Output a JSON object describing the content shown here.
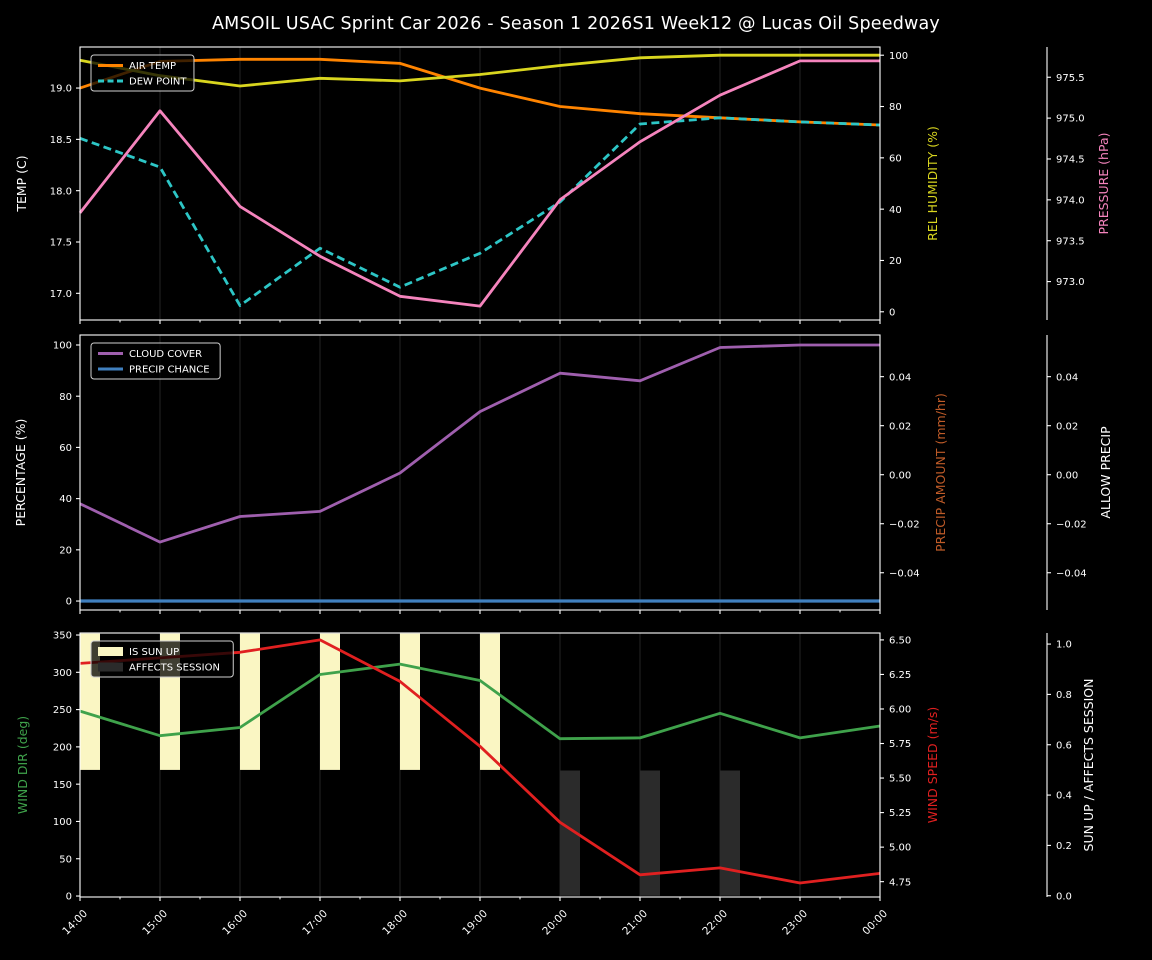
{
  "title": "AMSOIL USAC Sprint Car 2026 - Season 1 2026S1 Week12 @ Lucas Oil Speedway",
  "figure": {
    "background": "#000000",
    "text_color": "#ffffff",
    "grid_color": "#1f1f1f",
    "spine_color": "#ffffff"
  },
  "x_labels": [
    "14:00",
    "15:00",
    "16:00",
    "17:00",
    "18:00",
    "19:00",
    "20:00",
    "21:00",
    "22:00",
    "23:00",
    "00:00"
  ],
  "chart_data": [
    {
      "type": "line",
      "x": [
        "14:00",
        "15:00",
        "16:00",
        "17:00",
        "18:00",
        "19:00",
        "20:00",
        "21:00",
        "22:00",
        "23:00",
        "00:00"
      ],
      "axes": [
        {
          "id": "temp",
          "side": "left",
          "label": "TEMP (C)",
          "color": "#ffffff",
          "range": [
            16.74,
            19.4
          ],
          "ticks": [
            {
              "v": 17.0,
              "t": "17.0"
            },
            {
              "v": 17.5,
              "t": "17.5"
            },
            {
              "v": 18.0,
              "t": "18.0"
            },
            {
              "v": 18.5,
              "t": "18.5"
            },
            {
              "v": 19.0,
              "t": "19.0"
            }
          ]
        },
        {
          "id": "hum",
          "side": "right",
          "label": "REL HUMIDITY (%)",
          "color": "#d9d61f",
          "range": [
            -3.2,
            103.2
          ],
          "ticks": [
            {
              "v": 0,
              "t": "0"
            },
            {
              "v": 20,
              "t": "20"
            },
            {
              "v": 40,
              "t": "40"
            },
            {
              "v": 60,
              "t": "60"
            },
            {
              "v": 80,
              "t": "80"
            },
            {
              "v": 100,
              "t": "100"
            }
          ]
        },
        {
          "id": "pres",
          "side": "right2",
          "label": "PRESSURE (hPa)",
          "color": "#f584bd",
          "range": [
            972.53,
            975.87
          ],
          "ticks": [
            {
              "v": 973.0,
              "t": "973.0"
            },
            {
              "v": 973.5,
              "t": "973.5"
            },
            {
              "v": 974.0,
              "t": "974.0"
            },
            {
              "v": 974.5,
              "t": "974.5"
            },
            {
              "v": 975.0,
              "t": "975.0"
            },
            {
              "v": 975.5,
              "t": "975.5"
            }
          ]
        }
      ],
      "series": [
        {
          "name": "AIR TEMP",
          "axis": "temp",
          "color": "#ff8400",
          "dash": false,
          "width": 2.8,
          "values": [
            19.0,
            19.26,
            19.28,
            19.28,
            19.24,
            19.0,
            18.82,
            18.75,
            18.71,
            18.67,
            18.64
          ]
        },
        {
          "name": "DEW POINT",
          "axis": "temp",
          "color": "#2dc6c6",
          "dash": true,
          "width": 2.8,
          "values": [
            18.51,
            18.23,
            16.88,
            17.44,
            17.06,
            17.39,
            17.89,
            18.65,
            18.71,
            18.67,
            18.64
          ]
        },
        {
          "name": "REL HUMIDITY",
          "axis": "hum",
          "color": "#d9d61f",
          "dash": false,
          "width": 2.8,
          "values": [
            98,
            92,
            88,
            91,
            90,
            92.5,
            96,
            99,
            100,
            100,
            100
          ]
        },
        {
          "name": "PRESSURE",
          "axis": "pres",
          "color": "#f584bd",
          "dash": false,
          "width": 2.8,
          "values": [
            973.84,
            975.09,
            973.92,
            973.31,
            972.82,
            972.7,
            974.0,
            974.71,
            975.28,
            975.7,
            975.7
          ]
        }
      ],
      "legend": [
        {
          "label": "AIR TEMP",
          "type": "line",
          "color": "#ff8400",
          "dash": false
        },
        {
          "label": "DEW POINT",
          "type": "line",
          "color": "#2dc6c6",
          "dash": true
        }
      ]
    },
    {
      "type": "line",
      "x": [
        "14:00",
        "15:00",
        "16:00",
        "17:00",
        "18:00",
        "19:00",
        "20:00",
        "21:00",
        "22:00",
        "23:00",
        "00:00"
      ],
      "axes": [
        {
          "id": "pct",
          "side": "left",
          "label": "PERCENTAGE (%)",
          "color": "#ffffff",
          "range": [
            -3.5,
            103.9
          ],
          "ticks": [
            {
              "v": 0,
              "t": "0"
            },
            {
              "v": 20,
              "t": "20"
            },
            {
              "v": 40,
              "t": "40"
            },
            {
              "v": 60,
              "t": "60"
            },
            {
              "v": 80,
              "t": "80"
            },
            {
              "v": 100,
              "t": "100"
            }
          ]
        },
        {
          "id": "pamt",
          "side": "right",
          "label": "PRECIP AMOUNT (mm/hr)",
          "color": "#bf5b28",
          "range": [
            -0.0552,
            0.057
          ],
          "ticks": [
            {
              "v": -0.04,
              "t": "−0.04"
            },
            {
              "v": -0.02,
              "t": "−0.02"
            },
            {
              "v": 0.0,
              "t": "0.00"
            },
            {
              "v": 0.02,
              "t": "0.02"
            },
            {
              "v": 0.04,
              "t": "0.04"
            }
          ]
        },
        {
          "id": "allow",
          "side": "right2",
          "label": "ALLOW PRECIP",
          "color": "#ffffff",
          "range": [
            -0.0552,
            0.057
          ],
          "ticks": [
            {
              "v": -0.04,
              "t": "−0.04"
            },
            {
              "v": -0.02,
              "t": "−0.02"
            },
            {
              "v": 0.0,
              "t": "0.00"
            },
            {
              "v": 0.02,
              "t": "0.02"
            },
            {
              "v": 0.04,
              "t": "0.04"
            }
          ]
        }
      ],
      "series": [
        {
          "name": "CLOUD COVER",
          "axis": "pct",
          "color": "#9f5fae",
          "dash": false,
          "width": 2.8,
          "values": [
            38,
            23,
            33,
            35,
            50,
            74,
            89,
            86,
            99,
            100,
            100
          ]
        },
        {
          "name": "PRECIP CHANCE",
          "axis": "pct",
          "color": "#4080bf",
          "dash": false,
          "width": 3.2,
          "values": [
            0,
            0,
            0,
            0,
            0,
            0,
            0,
            0,
            0,
            0,
            0
          ]
        }
      ],
      "legend": [
        {
          "label": "CLOUD COVER",
          "type": "line",
          "color": "#9f5fae",
          "dash": false
        },
        {
          "label": "PRECIP CHANCE",
          "type": "line",
          "color": "#4080bf",
          "dash": false
        }
      ]
    },
    {
      "type": "line+bar",
      "x": [
        "14:00",
        "15:00",
        "16:00",
        "17:00",
        "18:00",
        "19:00",
        "20:00",
        "21:00",
        "22:00",
        "23:00",
        "00:00"
      ],
      "axes": [
        {
          "id": "dir",
          "side": "left",
          "label": "WIND DIR (deg)",
          "color": "#3fa24b",
          "range": [
            -1.3,
            352.7
          ],
          "ticks": [
            {
              "v": 0,
              "t": "0"
            },
            {
              "v": 50,
              "t": "50"
            },
            {
              "v": 100,
              "t": "100"
            },
            {
              "v": 150,
              "t": "150"
            },
            {
              "v": 200,
              "t": "200"
            },
            {
              "v": 250,
              "t": "250"
            },
            {
              "v": 300,
              "t": "300"
            },
            {
              "v": 350,
              "t": "350"
            }
          ]
        },
        {
          "id": "spd",
          "side": "right",
          "label": "WIND SPEED (m/s)",
          "color": "#e02020",
          "range": [
            4.639,
            6.55
          ],
          "ticks": [
            {
              "v": 4.75,
              "t": "4.75"
            },
            {
              "v": 5.0,
              "t": "5.00"
            },
            {
              "v": 5.25,
              "t": "5.25"
            },
            {
              "v": 5.5,
              "t": "5.50"
            },
            {
              "v": 5.75,
              "t": "5.75"
            },
            {
              "v": 6.0,
              "t": "6.00"
            },
            {
              "v": 6.25,
              "t": "6.25"
            },
            {
              "v": 6.5,
              "t": "6.50"
            }
          ]
        },
        {
          "id": "sun",
          "side": "right2",
          "label": "SUN UP / AFFECTS SESSION",
          "color": "#ffffff",
          "range": [
            -0.005,
            1.044
          ],
          "ticks": [
            {
              "v": 0.0,
              "t": "0.0"
            },
            {
              "v": 0.2,
              "t": "0.2"
            },
            {
              "v": 0.4,
              "t": "0.4"
            },
            {
              "v": 0.6,
              "t": "0.6"
            },
            {
              "v": 0.8,
              "t": "0.8"
            },
            {
              "v": 1.0,
              "t": "1.0"
            }
          ]
        }
      ],
      "bars": [
        {
          "name": "IS SUN UP",
          "axis": "sun",
          "color": "#faf6c3",
          "from": 0.5,
          "to": 1.044,
          "flags": [
            1,
            1,
            1,
            1,
            1,
            1,
            0,
            0,
            0,
            0,
            0
          ]
        },
        {
          "name": "AFFECTS SESSION",
          "axis": "sun",
          "color": "#2b2b2b",
          "from": 0.0,
          "to": 0.5,
          "flags": [
            0,
            0,
            0,
            0,
            0,
            0,
            1,
            1,
            1,
            0,
            0
          ]
        }
      ],
      "series": [
        {
          "name": "WIND DIR",
          "axis": "dir",
          "color": "#3fa24b",
          "dash": false,
          "width": 2.8,
          "values": [
            248,
            215,
            226,
            297,
            311,
            289,
            211,
            212,
            245,
            212,
            228
          ]
        },
        {
          "name": "WIND SPEED",
          "axis": "spd",
          "color": "#e02020",
          "dash": false,
          "width": 2.8,
          "values": [
            6.33,
            6.37,
            6.41,
            6.5,
            6.2,
            5.73,
            5.18,
            4.8,
            4.85,
            4.74,
            4.81
          ]
        }
      ],
      "legend": [
        {
          "label": "IS SUN UP",
          "type": "patch",
          "color": "#faf6c3"
        },
        {
          "label": "AFFECTS SESSION",
          "type": "patch",
          "color": "#2b2b2b"
        }
      ]
    }
  ]
}
